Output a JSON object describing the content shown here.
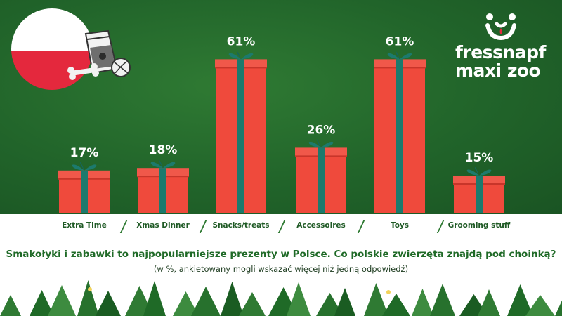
{
  "brand": {
    "line1": "fressnapf",
    "line2": "maxi zoo"
  },
  "chart_data": {
    "type": "bar",
    "title": "Smakołyki i zabawki to najpopularniejsze prezenty w Polsce. Co polskie zwierzęta znajdą pod choinką?",
    "subtitle": "(w %, ankietowany mogli wskazać więcej niż jedną odpowiedź)",
    "categories": [
      "Extra Time",
      "Xmas Dinner",
      "Snacks/treats",
      "Accessoires",
      "Toys",
      "Grooming stuff"
    ],
    "values": [
      17,
      18,
      61,
      26,
      61,
      15
    ],
    "value_labels": [
      "17%",
      "18%",
      "61%",
      "26%",
      "61%",
      "15%"
    ],
    "ylim": [
      0,
      70
    ],
    "colors": {
      "box": "#ef4a3c",
      "ribbon": "#1c7a6d",
      "label": "#1f5a25",
      "background": "#21642a"
    }
  }
}
